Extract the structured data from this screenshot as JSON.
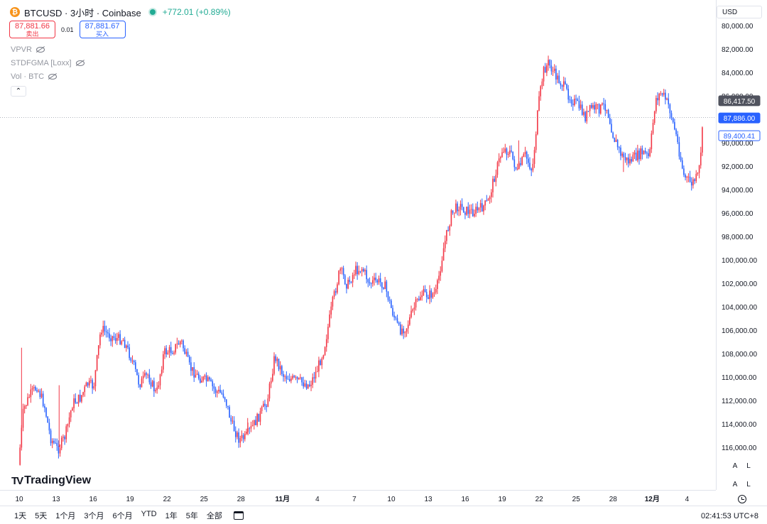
{
  "header": {
    "coin_symbol": "₿",
    "title": "BTCUSD · 3小时 · Coinbase",
    "change": "+772.01 (+0.89%)"
  },
  "quotes": {
    "sell_price": "87,881.66",
    "sell_label": "卖出",
    "spread": "0.01",
    "buy_price": "87,881.67",
    "buy_label": "买入"
  },
  "indicators": [
    {
      "label": "VPVR"
    },
    {
      "label": "STDFGMA [Loxx]"
    },
    {
      "label": "Vol · BTC"
    }
  ],
  "collapse_glyph": "⌃",
  "currency": "USD",
  "scale_buttons": [
    "A",
    "L"
  ],
  "logo": {
    "mark": "TV",
    "text": "TradingView"
  },
  "bottom_bar": {
    "ranges": [
      "1天",
      "5天",
      "1个月",
      "3个月",
      "6个月",
      "YTD",
      "1年",
      "5年",
      "全部"
    ],
    "time": "02:41:53 UTC+8"
  },
  "colors": {
    "up": "#f23645",
    "down": "#2962ff",
    "current_price_bg": "#2962ff",
    "crosshair_bg": "#50535e",
    "text": "#131722",
    "axis_text": "#131722"
  },
  "chart_data": {
    "type": "candlestick",
    "symbol": "BTCUSD",
    "interval": "3小时",
    "exchange": "Coinbase",
    "y_axis": {
      "inverted": true,
      "range": [
        79000,
        118500
      ],
      "ticks": [
        "80,000.00",
        "82,000.00",
        "84,000.00",
        "86,000.00",
        "88,000.00",
        "90,000.00",
        "92,000.00",
        "94,000.00",
        "96,000.00",
        "98,000.00",
        "100,000.00",
        "102,000.00",
        "104,000.00",
        "106,000.00",
        "108,000.00",
        "110,000.00",
        "112,000.00",
        "114,000.00",
        "116,000.00"
      ]
    },
    "x_axis": {
      "range": [
        0,
        55.6
      ],
      "ticks": [
        {
          "d": 0,
          "label": "10"
        },
        {
          "d": 3,
          "label": "13"
        },
        {
          "d": 6,
          "label": "16"
        },
        {
          "d": 9,
          "label": "19"
        },
        {
          "d": 12,
          "label": "22"
        },
        {
          "d": 15,
          "label": "25"
        },
        {
          "d": 18,
          "label": "28"
        },
        {
          "d": 21.2,
          "label": "11月",
          "bold": true
        },
        {
          "d": 24.2,
          "label": "4"
        },
        {
          "d": 27.2,
          "label": "7"
        },
        {
          "d": 30.2,
          "label": "10"
        },
        {
          "d": 33.2,
          "label": "13"
        },
        {
          "d": 36.2,
          "label": "16"
        },
        {
          "d": 39.2,
          "label": "19"
        },
        {
          "d": 42.2,
          "label": "22"
        },
        {
          "d": 45.2,
          "label": "25"
        },
        {
          "d": 48.2,
          "label": "28"
        },
        {
          "d": 51.2,
          "label": "12月",
          "bold": true
        },
        {
          "d": 54.2,
          "label": "4"
        }
      ]
    },
    "price_labels": [
      {
        "value": 86417.5,
        "text": "86,417.50",
        "style": "crosshair"
      },
      {
        "value": 87886,
        "text": "87,886.00",
        "style": "current"
      },
      {
        "value": 89400.41,
        "text": "89,400.41",
        "style": "outline"
      }
    ],
    "current_price_line": 87886,
    "path": [
      [
        0,
        117500
      ],
      [
        0.4,
        112800
      ],
      [
        0.9,
        111600
      ],
      [
        1.5,
        110800
      ],
      [
        2.1,
        112400
      ],
      [
        2.6,
        115200
      ],
      [
        3.2,
        116200
      ],
      [
        3.8,
        115000
      ],
      [
        4.4,
        112200
      ],
      [
        5.0,
        111800
      ],
      [
        5.6,
        110600
      ],
      [
        6.1,
        110800
      ],
      [
        6.7,
        105800
      ],
      [
        7.3,
        106400
      ],
      [
        7.9,
        106700
      ],
      [
        8.5,
        106800
      ],
      [
        9.2,
        108500
      ],
      [
        9.8,
        110600
      ],
      [
        10.5,
        109800
      ],
      [
        11.2,
        111500
      ],
      [
        11.8,
        107900
      ],
      [
        12.5,
        107700
      ],
      [
        13.2,
        106900
      ],
      [
        13.9,
        109200
      ],
      [
        14.6,
        110000
      ],
      [
        15.4,
        110400
      ],
      [
        16.0,
        111200
      ],
      [
        16.7,
        111500
      ],
      [
        17.3,
        114000
      ],
      [
        17.9,
        115300
      ],
      [
        18.4,
        115200
      ],
      [
        19.0,
        114200
      ],
      [
        19.6,
        113200
      ],
      [
        20.2,
        112000
      ],
      [
        20.8,
        108200
      ],
      [
        21.5,
        109800
      ],
      [
        22.2,
        110200
      ],
      [
        22.9,
        110400
      ],
      [
        23.6,
        110700
      ],
      [
        24.2,
        109500
      ],
      [
        24.8,
        107600
      ],
      [
        25.5,
        103600
      ],
      [
        26.1,
        100800
      ],
      [
        26.7,
        102200
      ],
      [
        27.3,
        100900
      ],
      [
        27.9,
        100700
      ],
      [
        28.5,
        102000
      ],
      [
        29.1,
        101800
      ],
      [
        29.7,
        102100
      ],
      [
        30.3,
        104300
      ],
      [
        30.9,
        106000
      ],
      [
        31.5,
        105700
      ],
      [
        32.1,
        104100
      ],
      [
        32.7,
        102900
      ],
      [
        33.3,
        103000
      ],
      [
        33.9,
        102800
      ],
      [
        34.5,
        99000
      ],
      [
        35.1,
        96200
      ],
      [
        35.7,
        95300
      ],
      [
        36.3,
        95800
      ],
      [
        36.9,
        95900
      ],
      [
        37.5,
        95600
      ],
      [
        38.1,
        95100
      ],
      [
        38.7,
        92600
      ],
      [
        39.3,
        90500
      ],
      [
        39.9,
        90800
      ],
      [
        40.5,
        92500
      ],
      [
        41.1,
        91000
      ],
      [
        41.7,
        92400
      ],
      [
        42.2,
        86800
      ],
      [
        42.6,
        83900
      ],
      [
        43.0,
        83200
      ],
      [
        43.6,
        84300
      ],
      [
        44.2,
        85100
      ],
      [
        44.8,
        86200
      ],
      [
        45.4,
        86800
      ],
      [
        46.0,
        87800
      ],
      [
        46.5,
        87000
      ],
      [
        47.1,
        87100
      ],
      [
        47.7,
        86800
      ],
      [
        48.3,
        89500
      ],
      [
        48.9,
        91000
      ],
      [
        49.5,
        91600
      ],
      [
        50.1,
        91200
      ],
      [
        50.7,
        90800
      ],
      [
        51.2,
        91300
      ],
      [
        51.7,
        86300
      ],
      [
        52.2,
        85700
      ],
      [
        52.8,
        86900
      ],
      [
        53.4,
        89500
      ],
      [
        54.0,
        92800
      ],
      [
        54.6,
        93500
      ],
      [
        55.2,
        92800
      ],
      [
        55.6,
        87886
      ]
    ],
    "spikes": [
      {
        "d": 0.25,
        "price": 107500
      },
      {
        "d": 3.3,
        "price": 110700
      },
      {
        "d": 18.6,
        "price": 113500
      },
      {
        "d": 40.6,
        "price": 89800
      },
      {
        "d": 49.1,
        "price": 92500
      }
    ]
  }
}
